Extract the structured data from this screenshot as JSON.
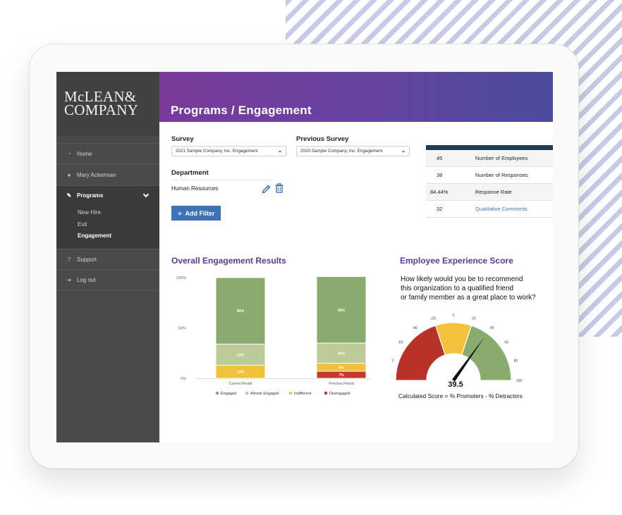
{
  "brand": {
    "line1": "McLEAN&",
    "line2": "COMPANY"
  },
  "sidebar": {
    "home": "Home",
    "user": "Mary Ackerman",
    "programs": "Programs",
    "subitems": [
      "New Hire",
      "Exit",
      "Engagement"
    ],
    "support": "Support",
    "logout": "Log out"
  },
  "header": {
    "title": "Programs / Engagement"
  },
  "filters": {
    "survey_label": "Survey",
    "survey_value": "2021 Sample Company, Inc. Engagement",
    "previous_label": "Previous Survey",
    "previous_value": "2020 Sample Company, Inc. Engagement",
    "department_label": "Department",
    "department_value": "Human Resources",
    "add_filter": "Add Filter"
  },
  "stats": [
    {
      "value": "45",
      "label": "Number of Employees"
    },
    {
      "value": "38",
      "label": "Number of Responses"
    },
    {
      "value": "84.44%",
      "label": "Response Rate"
    },
    {
      "value": "32",
      "label": "Qualitative Comments"
    }
  ],
  "engagement": {
    "title": "Overall Engagement Results"
  },
  "ees": {
    "title": "Employee Experience Score",
    "question_lines": [
      "How likely would you be to recommend",
      "this organization to a qualified friend",
      "or family member as a great place to work?"
    ],
    "score": "39.5",
    "formula": "Calculated Score = % Promoters - % Detractors"
  },
  "chart_data": [
    {
      "type": "bar",
      "title": "Overall Engagement Results",
      "categories": [
        "Current Period",
        "Previous Period"
      ],
      "ylim": [
        0,
        100
      ],
      "yticks": [
        "0%",
        "50%",
        "100%"
      ],
      "stacked": true,
      "series": [
        {
          "name": "Disengaged",
          "color": "#c0392b",
          "values": [
            0,
            7
          ],
          "labels": [
            "",
            "7%"
          ]
        },
        {
          "name": "Indifferent",
          "color": "#f0c23b",
          "values": [
            13,
            8
          ],
          "labels": [
            "13%",
            "8%"
          ]
        },
        {
          "name": "Almost Engaged",
          "color": "#bccb99",
          "values": [
            21,
            20
          ],
          "labels": [
            "21%",
            "20%"
          ]
        },
        {
          "name": "Engaged",
          "color": "#8aab6e",
          "values": [
            66,
            66
          ],
          "labels": [
            "66%",
            "66%"
          ]
        }
      ],
      "legend": [
        "Engaged",
        "Almost Engaged",
        "Indifferent",
        "Disengaged"
      ],
      "legend_placement": "bottom"
    },
    {
      "type": "gauge",
      "title": "Employee Experience Score",
      "range": [
        -100,
        100
      ],
      "ticks": [
        "-100",
        "-80",
        "-60",
        "-40",
        "-20",
        "0",
        "20",
        "40",
        "60",
        "80",
        "100"
      ],
      "bands": [
        {
          "from": -100,
          "to": -20,
          "color": "#b8322a"
        },
        {
          "from": -20,
          "to": 20,
          "color": "#f4c23c"
        },
        {
          "from": 20,
          "to": 100,
          "color": "#8aab6e"
        }
      ],
      "value": 39.5,
      "value_label": "39.5"
    }
  ]
}
